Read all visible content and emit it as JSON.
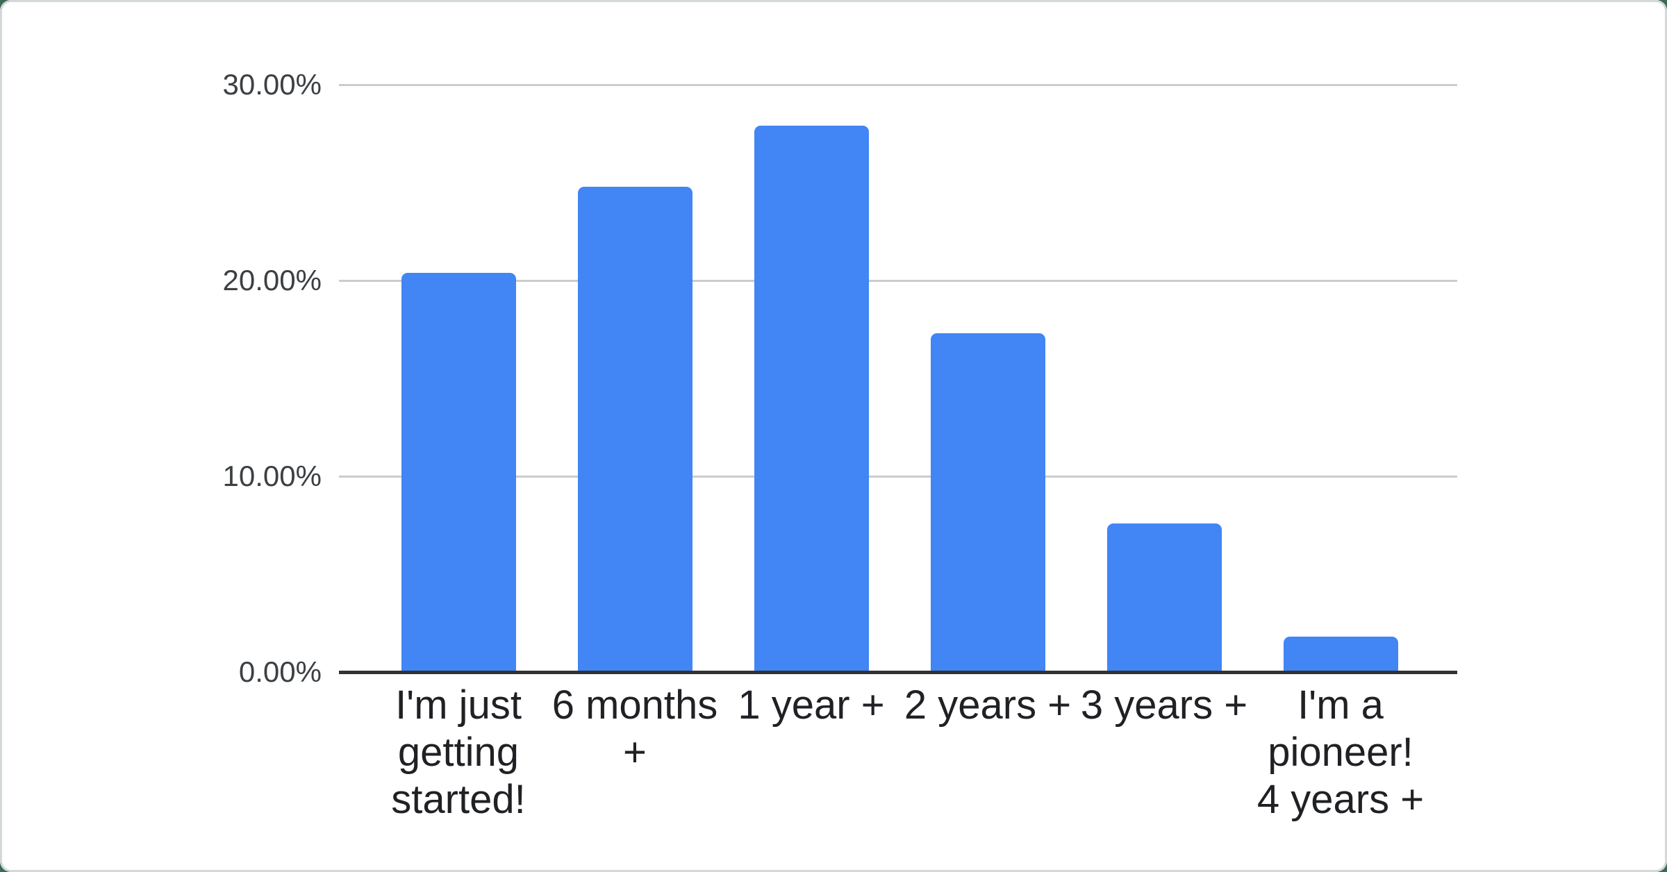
{
  "chart_data": {
    "type": "bar",
    "title": "",
    "xlabel": "",
    "ylabel": "",
    "unit": "%",
    "categories": [
      "I'm just getting started!",
      "6 months +",
      "1 year +",
      "2 years +",
      "3 years +",
      "I'm a pioneer! 4 years +"
    ],
    "category_lines": [
      [
        "I'm just",
        "getting",
        "started!"
      ],
      [
        "6 months",
        "+"
      ],
      [
        "1 year +"
      ],
      [
        "2 years +"
      ],
      [
        "3 years +"
      ],
      [
        "I'm a",
        "pioneer!",
        "4 years +"
      ]
    ],
    "values": [
      20.4,
      24.8,
      27.9,
      17.3,
      7.6,
      1.8
    ],
    "ylim": [
      0,
      30
    ],
    "y_ticks": [
      {
        "value": 30,
        "label": "30.00%"
      },
      {
        "value": 20,
        "label": "20.00%"
      },
      {
        "value": 10,
        "label": "10.00%"
      },
      {
        "value": 0,
        "label": "0.00%"
      }
    ],
    "grid": true,
    "legend": "none",
    "colors": {
      "bar": "#4285f4",
      "gridline": "#cccccc",
      "axis": "#333333",
      "y_label": "#3c4043",
      "x_label": "#202124",
      "card_background": "#ffffff",
      "page_background": "#3c6b53",
      "card_border": "#d3d8db"
    }
  }
}
